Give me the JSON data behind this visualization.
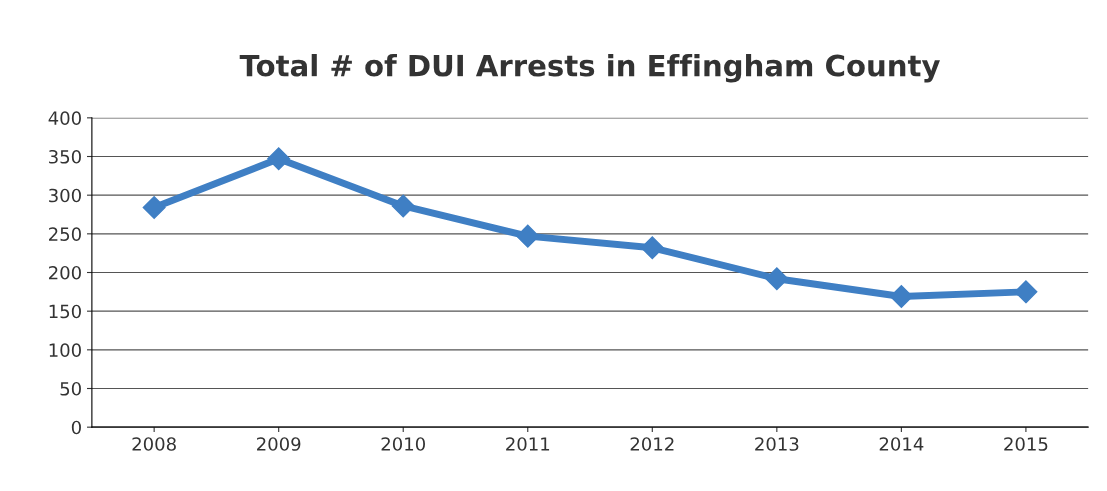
{
  "chart_data": {
    "type": "line",
    "title": "Total # of DUI Arrests in Effingham County",
    "categories": [
      "2008",
      "2009",
      "2010",
      "2011",
      "2012",
      "2013",
      "2014",
      "2015"
    ],
    "series": [
      {
        "color": "#3f7fc4",
        "values": [
          284,
          347,
          286,
          247,
          232,
          192,
          169,
          175
        ]
      }
    ],
    "ylim": [
      0,
      400
    ],
    "yticks": [
      0,
      50,
      100,
      150,
      200,
      250,
      300,
      350,
      400
    ],
    "grid": "y",
    "marker": "diamond",
    "line_style": "solid"
  }
}
